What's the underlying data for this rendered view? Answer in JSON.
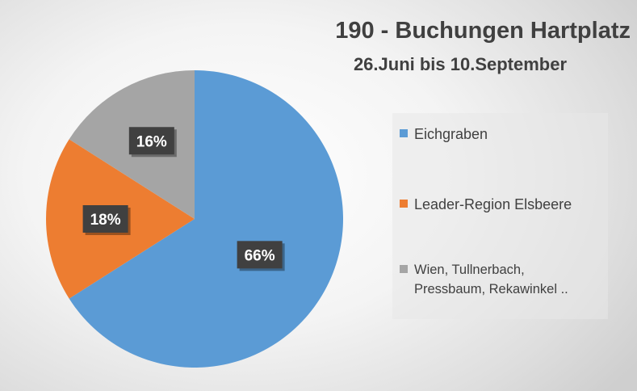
{
  "chart_data": {
    "type": "pie",
    "title": "190 - Buchungen Hartplatz",
    "subtitle": "26.Juni bis 10.September",
    "categories": [
      "Eichgraben",
      "Leader-Region Elsbeere",
      "Wien, Tullnerbach, Pressbaum, Rekawinkel .."
    ],
    "values": [
      66,
      18,
      16
    ],
    "labels": [
      "66%",
      "18%",
      "16%"
    ],
    "colors": [
      "#5b9bd5",
      "#ed7d31",
      "#a5a5a5"
    ],
    "legend_position": "right"
  },
  "legend_lines": [
    [
      "Eichgraben"
    ],
    [
      "Leader-Region Elsbeere"
    ],
    [
      "Wien, Tullnerbach,",
      "Pressbaum, Rekawinkel .."
    ]
  ]
}
